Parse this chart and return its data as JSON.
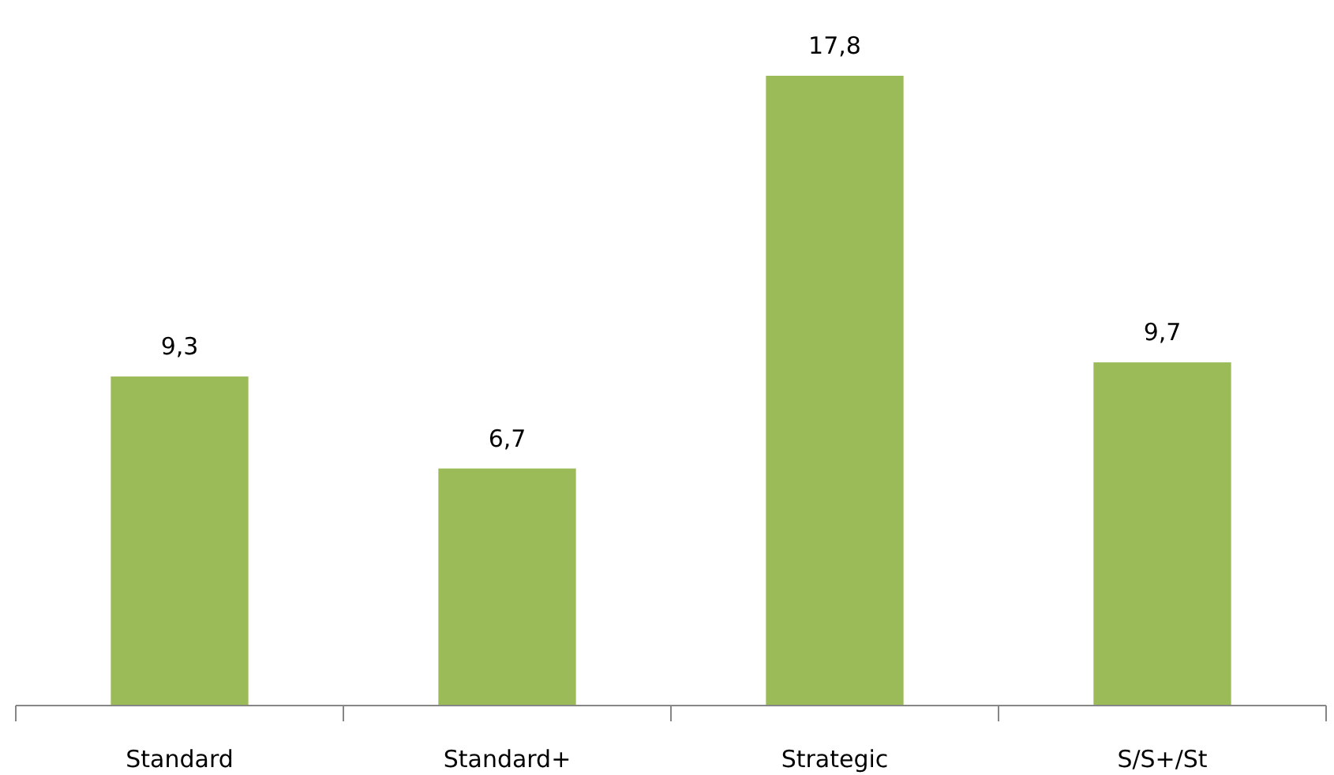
{
  "chart_data": {
    "type": "bar",
    "categories": [
      "Standard",
      "Standard+",
      "Strategic",
      "S/S+/St"
    ],
    "values": [
      9.3,
      6.7,
      17.8,
      9.7
    ],
    "value_labels": [
      "9,3",
      "6,7",
      "17,8",
      "9,7"
    ],
    "color": "#9bbb59"
  }
}
